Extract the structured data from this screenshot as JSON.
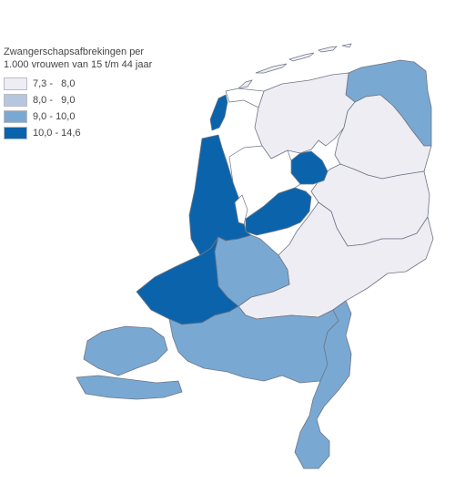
{
  "legend": {
    "title_line1": "Zwangerschapsafbrekingen per",
    "title_line2": "1.000 vrouwen van 15 t/m 44 jaar",
    "classes": [
      {
        "label": "7,3 -   8,0",
        "color": "#eeedf4"
      },
      {
        "label": "8,0 -   9,0",
        "color": "#b7c6e0"
      },
      {
        "label": "9,0 - 10,0",
        "color": "#79a9d3"
      },
      {
        "label": "10,0 - 14,6",
        "color": "#0b64ab"
      }
    ]
  },
  "map": {
    "land_color": "#eeedf4",
    "border_color": "#6e7584",
    "regions": [
      {
        "name": "Groningen",
        "class": 2
      },
      {
        "name": "Friesland",
        "class": 0
      },
      {
        "name": "Drenthe",
        "class": 0
      },
      {
        "name": "Overijssel",
        "class": 0
      },
      {
        "name": "Flevoland",
        "class": 3
      },
      {
        "name": "Gelderland",
        "class": 0
      },
      {
        "name": "Utrecht",
        "class": 2
      },
      {
        "name": "Noord-Holland",
        "class": 3
      },
      {
        "name": "Zuid-Holland",
        "class": 3
      },
      {
        "name": "Zeeland",
        "class": 2
      },
      {
        "name": "Noord-Brabant",
        "class": 2
      },
      {
        "name": "Limburg",
        "class": 2
      },
      {
        "name": "Texel",
        "class": 3
      }
    ]
  }
}
